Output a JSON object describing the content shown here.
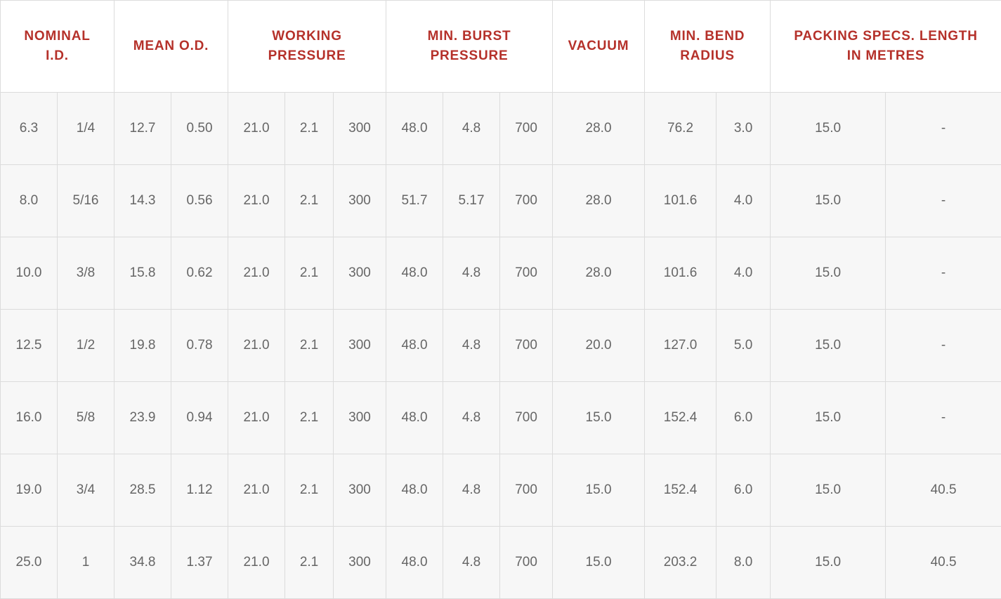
{
  "colors": {
    "header_text": "#b5312a",
    "cell_text": "#666666",
    "row_background": "#f7f7f7",
    "header_background": "#ffffff",
    "border": "#dcdcdc"
  },
  "headers": [
    {
      "lines": [
        "NOMINAL",
        "I.D."
      ],
      "span": 2
    },
    {
      "lines": [
        "MEAN O.D."
      ],
      "span": 2
    },
    {
      "lines": [
        "WORKING",
        "PRESSURE"
      ],
      "span": 3
    },
    {
      "lines": [
        "MIN. BURST",
        "PRESSURE"
      ],
      "span": 3
    },
    {
      "lines": [
        "VACUUM"
      ],
      "span": 1
    },
    {
      "lines": [
        "MIN. BEND",
        "RADIUS"
      ],
      "span": 2
    },
    {
      "lines": [
        "PACKING SPECS. LENGTH",
        "IN METRES"
      ],
      "span": 2
    }
  ],
  "rows": [
    [
      "6.3",
      "1/4",
      "12.7",
      "0.50",
      "21.0",
      "2.1",
      "300",
      "48.0",
      "4.8",
      "700",
      "28.0",
      "76.2",
      "3.0",
      "15.0",
      "-"
    ],
    [
      "8.0",
      "5/16",
      "14.3",
      "0.56",
      "21.0",
      "2.1",
      "300",
      "51.7",
      "5.17",
      "700",
      "28.0",
      "101.6",
      "4.0",
      "15.0",
      "-"
    ],
    [
      "10.0",
      "3/8",
      "15.8",
      "0.62",
      "21.0",
      "2.1",
      "300",
      "48.0",
      "4.8",
      "700",
      "28.0",
      "101.6",
      "4.0",
      "15.0",
      "-"
    ],
    [
      "12.5",
      "1/2",
      "19.8",
      "0.78",
      "21.0",
      "2.1",
      "300",
      "48.0",
      "4.8",
      "700",
      "20.0",
      "127.0",
      "5.0",
      "15.0",
      "-"
    ],
    [
      "16.0",
      "5/8",
      "23.9",
      "0.94",
      "21.0",
      "2.1",
      "300",
      "48.0",
      "4.8",
      "700",
      "15.0",
      "152.4",
      "6.0",
      "15.0",
      "-"
    ],
    [
      "19.0",
      "3/4",
      "28.5",
      "1.12",
      "21.0",
      "2.1",
      "300",
      "48.0",
      "4.8",
      "700",
      "15.0",
      "152.4",
      "6.0",
      "15.0",
      "40.5"
    ],
    [
      "25.0",
      "1",
      "34.8",
      "1.37",
      "21.0",
      "2.1",
      "300",
      "48.0",
      "4.8",
      "700",
      "15.0",
      "203.2",
      "8.0",
      "15.0",
      "40.5"
    ]
  ]
}
